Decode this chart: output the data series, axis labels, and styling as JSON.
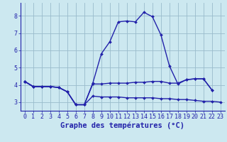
{
  "xlabel": "Graphe des températures (°C)",
  "bg_color": "#cce8f0",
  "line_color": "#2222aa",
  "grid_color": "#99bbcc",
  "hours": [
    0,
    1,
    2,
    3,
    4,
    5,
    6,
    7,
    8,
    9,
    10,
    11,
    12,
    13,
    14,
    15,
    16,
    17,
    18,
    19,
    20,
    21,
    22,
    23
  ],
  "line1": [
    4.2,
    3.9,
    3.9,
    3.9,
    3.85,
    3.6,
    2.85,
    2.85,
    4.1,
    5.8,
    6.5,
    7.65,
    7.7,
    7.65,
    8.2,
    7.95,
    6.9,
    5.1,
    4.05,
    4.3,
    4.35,
    4.35,
    3.7,
    null
  ],
  "line2": [
    4.2,
    3.9,
    3.9,
    3.9,
    3.85,
    3.6,
    2.85,
    2.85,
    4.05,
    4.05,
    4.1,
    4.1,
    4.1,
    4.15,
    4.15,
    4.2,
    4.2,
    4.1,
    4.1,
    4.3,
    4.35,
    4.35,
    3.7,
    null
  ],
  "line3": [
    4.2,
    3.9,
    null,
    null,
    null,
    null,
    null,
    null,
    null,
    null,
    null,
    null,
    null,
    null,
    null,
    null,
    null,
    null,
    null,
    null,
    null,
    null,
    null,
    null
  ],
  "line4": [
    4.2,
    3.9,
    3.9,
    3.9,
    3.85,
    3.6,
    2.85,
    2.85,
    3.35,
    3.3,
    3.3,
    3.3,
    3.25,
    3.25,
    3.25,
    3.25,
    3.2,
    3.2,
    3.15,
    3.15,
    3.1,
    3.05,
    3.05,
    3.0
  ],
  "ylim": [
    2.5,
    8.75
  ],
  "xlim": [
    -0.5,
    23.5
  ],
  "yticks": [
    3,
    4,
    5,
    6,
    7,
    8
  ],
  "xticks": [
    0,
    1,
    2,
    3,
    4,
    5,
    6,
    7,
    8,
    9,
    10,
    11,
    12,
    13,
    14,
    15,
    16,
    17,
    18,
    19,
    20,
    21,
    22,
    23
  ],
  "xlabel_fontsize": 7.5,
  "tick_fontsize": 6,
  "markersize": 2.0,
  "linewidth": 1.0
}
